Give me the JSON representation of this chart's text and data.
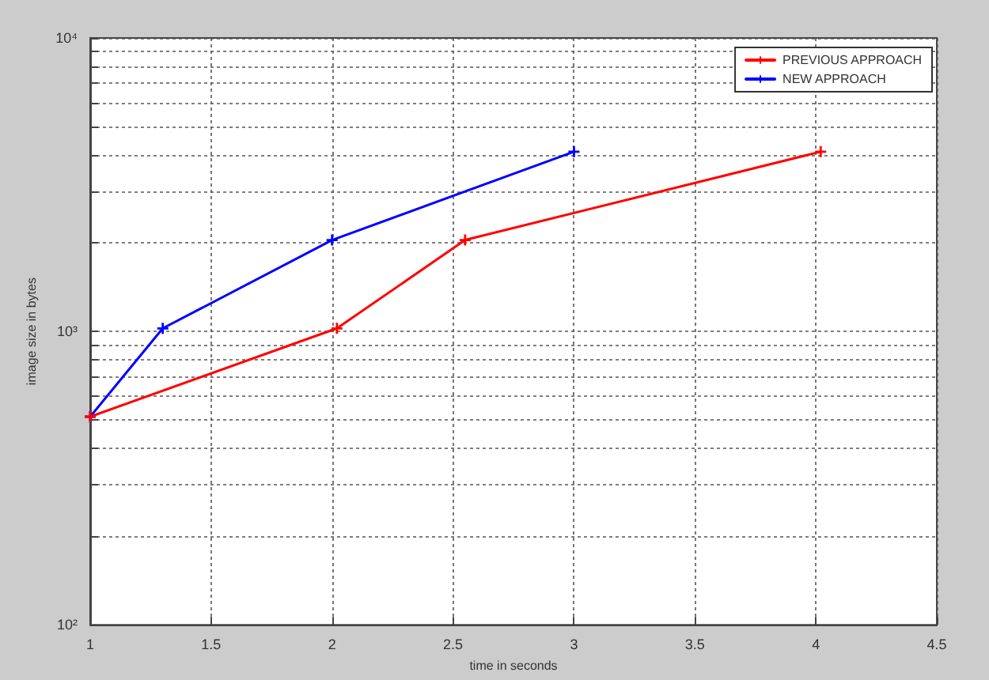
{
  "chart_data": {
    "type": "line",
    "xlabel": "time in seconds",
    "ylabel": "image size in bytes",
    "log": "y",
    "grid": true,
    "legend": "top right",
    "marker": "cross",
    "line_style": "solid",
    "xlim": [
      1,
      4.5
    ],
    "xticks": [
      1,
      1.5,
      2,
      2.5,
      3,
      3.5,
      4,
      4.5
    ],
    "ylim": [
      100,
      10000
    ],
    "yticks": [
      {
        "value": 100,
        "label": "10²"
      },
      {
        "value": 200,
        "label": null
      },
      {
        "value": 300,
        "label": null
      },
      {
        "value": 400,
        "label": null
      },
      {
        "value": 500,
        "label": null
      },
      {
        "value": 600,
        "label": null
      },
      {
        "value": 700,
        "label": null
      },
      {
        "value": 800,
        "label": null
      },
      {
        "value": 900,
        "label": null
      },
      {
        "value": 1000,
        "label": "10³"
      },
      {
        "value": 2000,
        "label": null
      },
      {
        "value": 3000,
        "label": null
      },
      {
        "value": 4000,
        "label": null
      },
      {
        "value": 5000,
        "label": null
      },
      {
        "value": 6000,
        "label": null
      },
      {
        "value": 7000,
        "label": null
      },
      {
        "value": 8000,
        "label": null
      },
      {
        "value": 9000,
        "label": null
      },
      {
        "value": 10000,
        "label": "10⁴"
      }
    ],
    "series": [
      {
        "name": "PREVIOUS APPROACH",
        "color": "#ff0000",
        "x": [
          1,
          2.02,
          2.55,
          4.02
        ],
        "values": [
          512,
          1024,
          2048,
          4096
        ]
      },
      {
        "name": "NEW APPROACH",
        "color": "#0000ff",
        "x": [
          1,
          1.3,
          2,
          3
        ],
        "values": [
          512,
          1024,
          2048,
          4096
        ]
      }
    ]
  }
}
